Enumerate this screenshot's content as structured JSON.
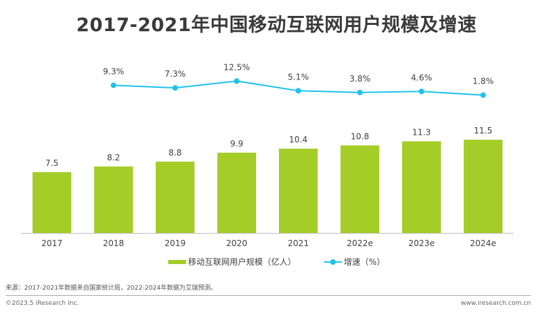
{
  "chart_data": {
    "type": "bar+line",
    "title": "2017-2021年中国移动互联网用户规模及增速",
    "categories": [
      "2017",
      "2018",
      "2019",
      "2020",
      "2021",
      "2022e",
      "2023e",
      "2024e"
    ],
    "series": [
      {
        "name": "移动互联网用户规模（亿人）",
        "type": "bar",
        "color": "#a5cd28",
        "values": [
          7.5,
          8.2,
          8.8,
          9.9,
          10.4,
          10.8,
          11.3,
          11.5
        ],
        "labels": [
          "7.5",
          "8.2",
          "8.8",
          "9.9",
          "10.4",
          "10.8",
          "11.3",
          "11.5"
        ]
      },
      {
        "name": "增速（%）",
        "type": "line",
        "color": "#1fc2ec",
        "values": [
          null,
          9.3,
          7.3,
          12.5,
          5.1,
          3.8,
          4.6,
          1.8
        ],
        "labels": [
          "",
          "9.3%",
          "7.3%",
          "12.5%",
          "5.1%",
          "3.8%",
          "4.6%",
          "1.8%"
        ]
      }
    ],
    "legend_position": "bottom",
    "grid": false
  },
  "legend": {
    "bar": "移动互联网用户规模（亿人）",
    "line": "增速（%）"
  },
  "footer": {
    "source": "来源：2017-2021年数据来自国家统计局，2022-2024年数据为艾瑞预测。",
    "copyright": "©2023.5 iResearch Inc.",
    "website": "www.iresearch.com.cn"
  }
}
